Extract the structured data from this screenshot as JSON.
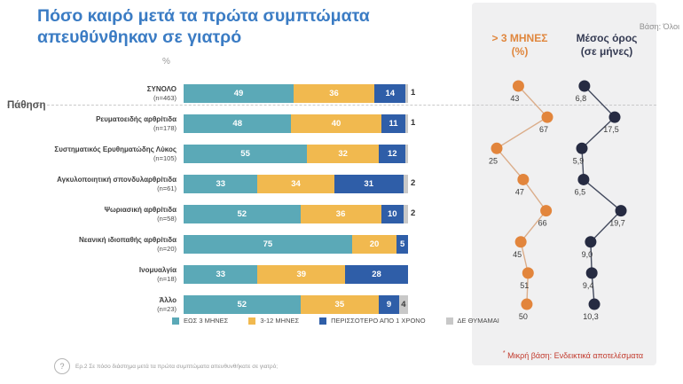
{
  "title": "Πόσο καιρό μετά τα πρώτα συμπτώματα απευθύνθηκαν σε γιατρό",
  "base_note": "Βάση: Όλοι",
  "percent_label": "%",
  "group_label": "Πάθηση",
  "panel": {
    "col1_title": "> 3 ΜΗΝΕΣ",
    "col1_sub": "(%)",
    "col2_title": "Μέσος όρος",
    "col2_sub": "(σε μήνες)",
    "footnote_marker": "*",
    "footnote": " Μικρή βάση: Ενδεικτικά αποτελέσματα"
  },
  "footer": {
    "icon": "question-mark-icon",
    "question": "Ερ.2 Σε πόσο διάστημα μετά τα πρώτα συμπτώματα απευθυνθήκατε σε γιατρό;"
  },
  "colors": {
    "title": "#3B7CC4",
    "segments": [
      "#5BA9B7",
      "#F1B94F",
      "#2F5EA8",
      "#C8C8C8"
    ],
    "orange_dot": "#E2853C",
    "orange_line": "#DBAD8A",
    "navy_dot": "#262B42",
    "navy_line": "#434A5E",
    "dot_label": "#3A3A3A",
    "footnote_red": "#C23B2E",
    "panel_bg": "#F0F0F1"
  },
  "chart_data": {
    "type": "bar",
    "stacked": true,
    "unit": "%",
    "title": "Πόσο καιρό μετά τα πρώτα συμπτώματα απευθύνθηκαν σε γιατρό",
    "legend": [
      "ΕΩΣ 3 ΜΗΝΕΣ",
      "3-12 ΜΗΝΕΣ",
      "ΠΕΡΙΣΣΟΤΕΡΟ ΑΠΟ 1 ΧΡΟΝΟ",
      "ΔΕ ΘΥΜΑΜΑΙ"
    ],
    "categories": [
      "ΣΥΝΟΛΟ (n=463)",
      "Ρευματοειδής αρθρίτιδα (n=178)",
      "Συστηματικός Ερυθηματώδης Λύκος (n=105)",
      "Αγκυλοποιητική σπονδυλαρθρίτιδα (n=61)",
      "Ψωριασική αρθρίτιδα (n=58)",
      "Νεανική ιδιοπαθής αρθρίτιδα (n=20)",
      "Ινομυαλγία (n=18)",
      "Άλλο (n=23)"
    ],
    "rows": [
      {
        "label": "ΣΥΝΟΛΟ",
        "n": "(n=463)",
        "values": [
          49,
          36,
          14,
          1
        ],
        "inside_labels": [
          "49",
          "36",
          "14",
          ""
        ],
        "outside_label": "1"
      },
      {
        "label": "Ρευματοειδής αρθρίτιδα",
        "n": "(n=178)",
        "values": [
          48,
          40,
          11,
          1
        ],
        "inside_labels": [
          "48",
          "40",
          "11",
          ""
        ],
        "outside_label": "1"
      },
      {
        "label": "Συστηματικός Ερυθηματώδης Λύκος",
        "n": "(n=105)",
        "values": [
          55,
          32,
          12,
          1
        ],
        "inside_labels": [
          "55",
          "32",
          "12",
          ""
        ],
        "outside_label": ""
      },
      {
        "label": "Αγκυλοποιητική σπονδυλαρθρίτιδα",
        "n": "(n=61)",
        "values": [
          33,
          34,
          31,
          2
        ],
        "inside_labels": [
          "33",
          "34",
          "31",
          ""
        ],
        "outside_label": "2"
      },
      {
        "label": "Ψωριασική αρθρίτιδα",
        "n": "(n=58)",
        "values": [
          52,
          36,
          10,
          2
        ],
        "inside_labels": [
          "52",
          "36",
          "10",
          ""
        ],
        "outside_label": "2"
      },
      {
        "label": "Νεανική ιδιοπαθής αρθρίτιδα",
        "n": "(n=20)",
        "values": [
          75,
          20,
          5,
          0
        ],
        "inside_labels": [
          "75",
          "20",
          "5",
          ""
        ],
        "outside_label": ""
      },
      {
        "label": "Ινομυαλγία",
        "n": "(n=18)",
        "values": [
          33,
          39,
          28,
          0
        ],
        "inside_labels": [
          "33",
          "39",
          "28",
          ""
        ],
        "outside_label": ""
      },
      {
        "label": "Άλλο",
        "n": "(n=23)",
        "values": [
          52,
          35,
          9,
          4
        ],
        "inside_labels": [
          "52",
          "35",
          "9",
          "4"
        ],
        "outside_label": ""
      }
    ],
    "series": [
      {
        "name": "> 3 ΜΗΝΕΣ (%)",
        "values": [
          43,
          67,
          25,
          47,
          66,
          45,
          51,
          50
        ],
        "labels": [
          "43",
          "67",
          "25",
          "47",
          "66",
          "45",
          "51",
          "50"
        ]
      },
      {
        "name": "Μέσος όρος (σε μήνες)",
        "values": [
          6.8,
          17.5,
          5.9,
          6.5,
          19.7,
          9.0,
          9.4,
          10.3
        ],
        "labels": [
          "6,8",
          "17,5",
          "5,9",
          "6,5",
          "19,7",
          "9,0",
          "9,4",
          "10,3"
        ]
      }
    ]
  }
}
